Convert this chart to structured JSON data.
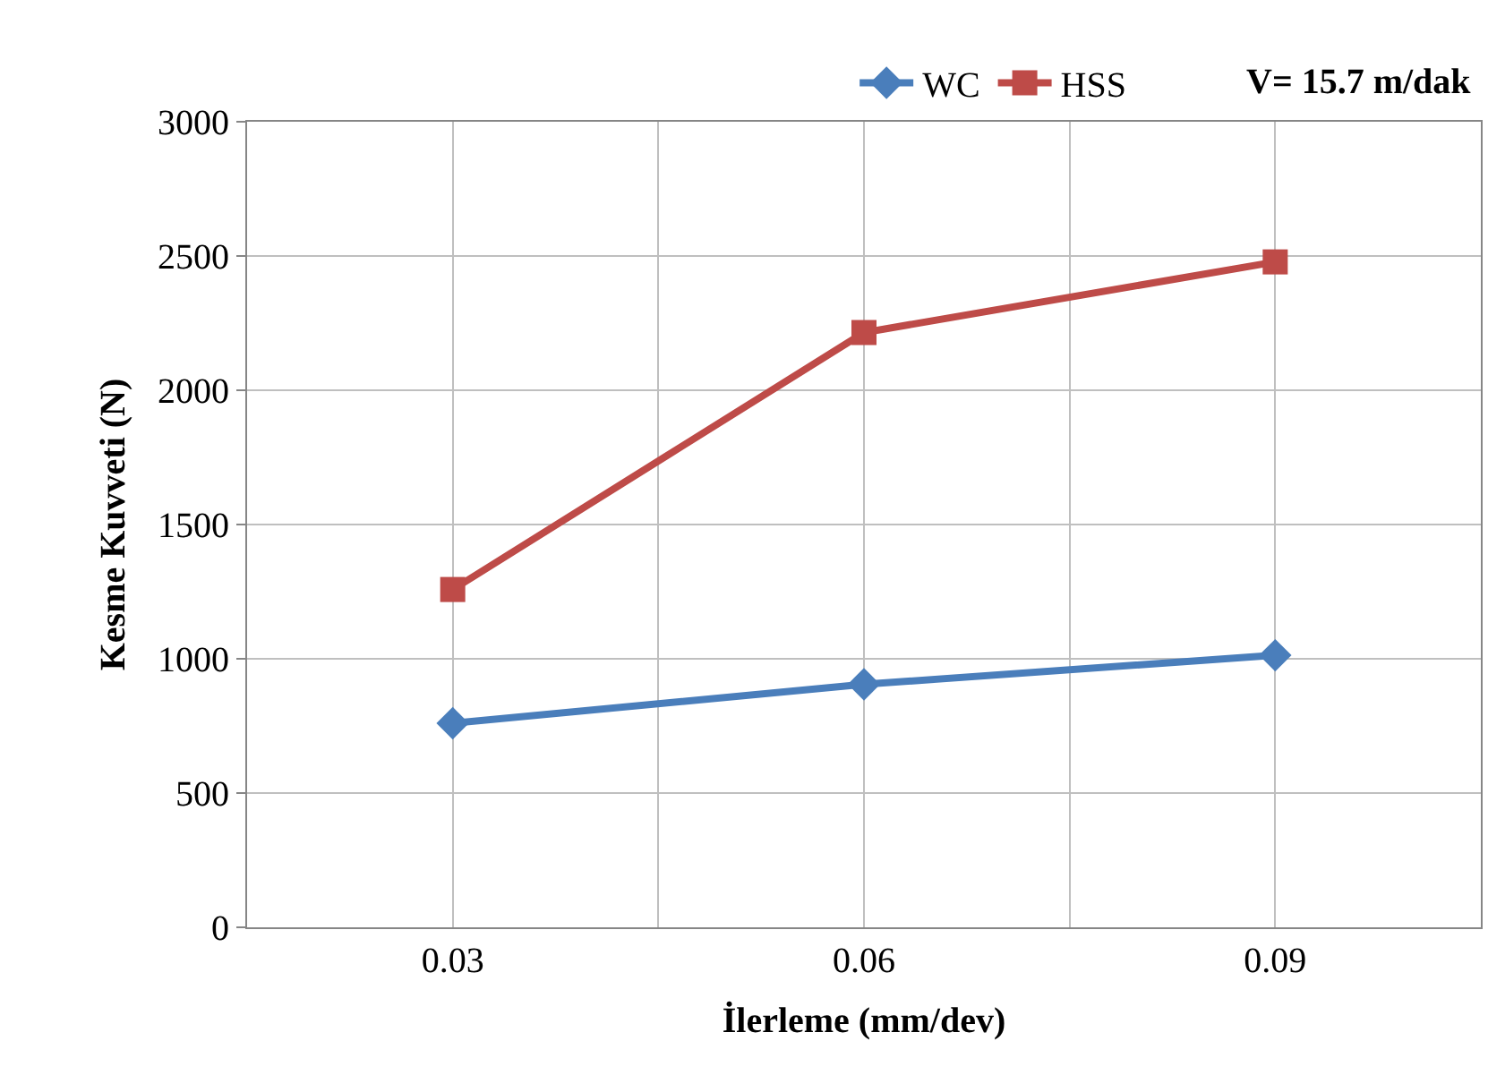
{
  "chart_data": {
    "type": "line",
    "xlabel": "İlerleme (mm/dev)",
    "ylabel": "Kesme Kuvveti (N)",
    "x": [
      0.03,
      0.06,
      0.09
    ],
    "series": [
      {
        "name": "WC",
        "color": "#4a7ebb",
        "values": [
          760,
          905,
          1013
        ],
        "marker": "diamond"
      },
      {
        "name": "HSS",
        "color": "#be4b48",
        "values": [
          1258,
          2215,
          2478
        ],
        "marker": "square"
      }
    ],
    "xlim": [
      0.015,
      0.105
    ],
    "xticks": [
      0.03,
      {
        "value": 0.045,
        "label": null
      },
      0.06,
      {
        "value": 0.075,
        "label": null
      },
      0.09
    ],
    "ylim": [
      0,
      3000
    ],
    "yticks": [
      0,
      500,
      1000,
      1500,
      2000,
      2500,
      3000
    ],
    "grid": true,
    "legend": "top right",
    "line_style": "solid",
    "annotations": [
      "V= 15.7 m/dak"
    ]
  }
}
